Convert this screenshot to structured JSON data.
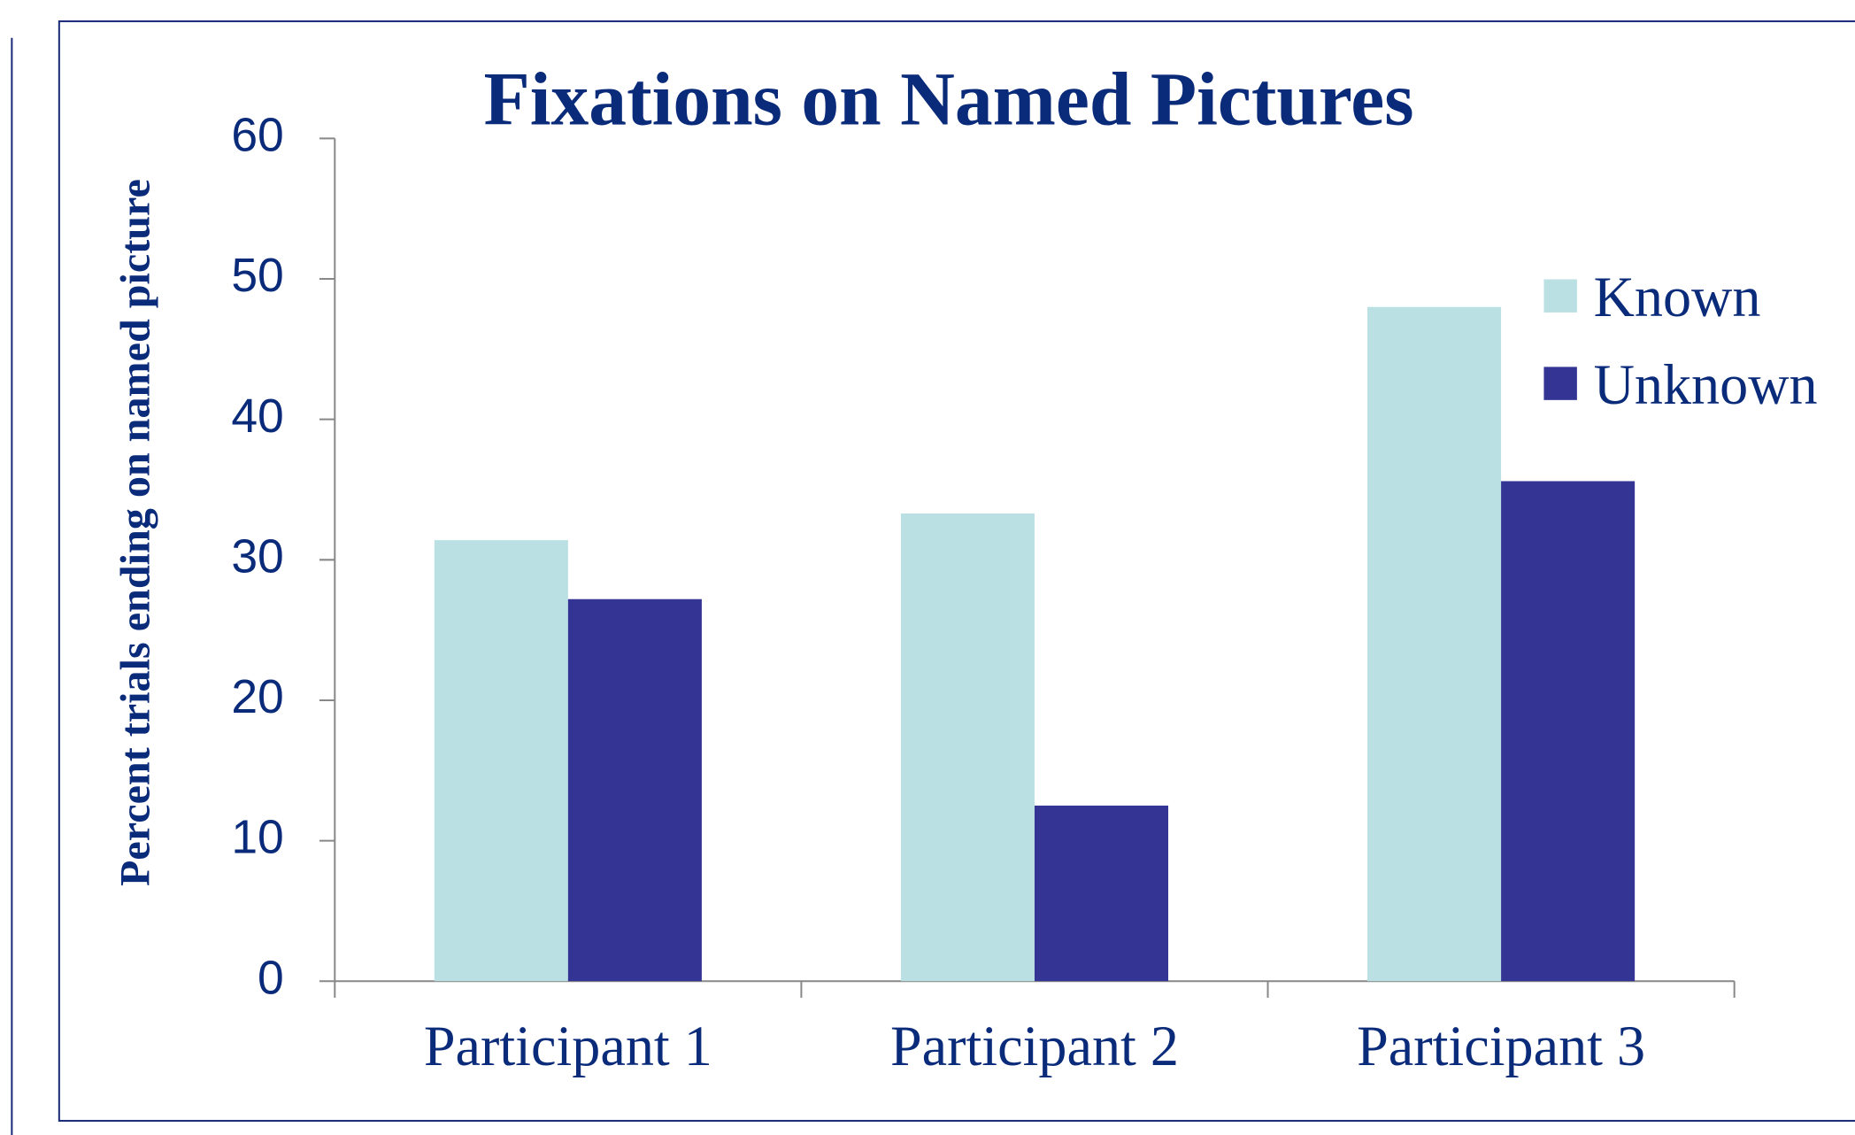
{
  "chart_data": {
    "type": "bar",
    "title": "Fixations on Named Pictures",
    "y_label": "Percent trials ending on named picture",
    "categories": [
      "Participant 1",
      "Participant 2",
      "Participant 3"
    ],
    "series": [
      {
        "name": "Known",
        "color": "#bae0e3",
        "values": [
          31.4,
          33.3,
          48
        ]
      },
      {
        "name": "Unknown",
        "color": "#343495",
        "values": [
          27.2,
          12.5,
          35.6
        ]
      }
    ],
    "ylim": [
      0,
      60
    ],
    "yticks": [
      0,
      10,
      20,
      30,
      40,
      50,
      60
    ],
    "grid": false,
    "legend": "upper right"
  }
}
